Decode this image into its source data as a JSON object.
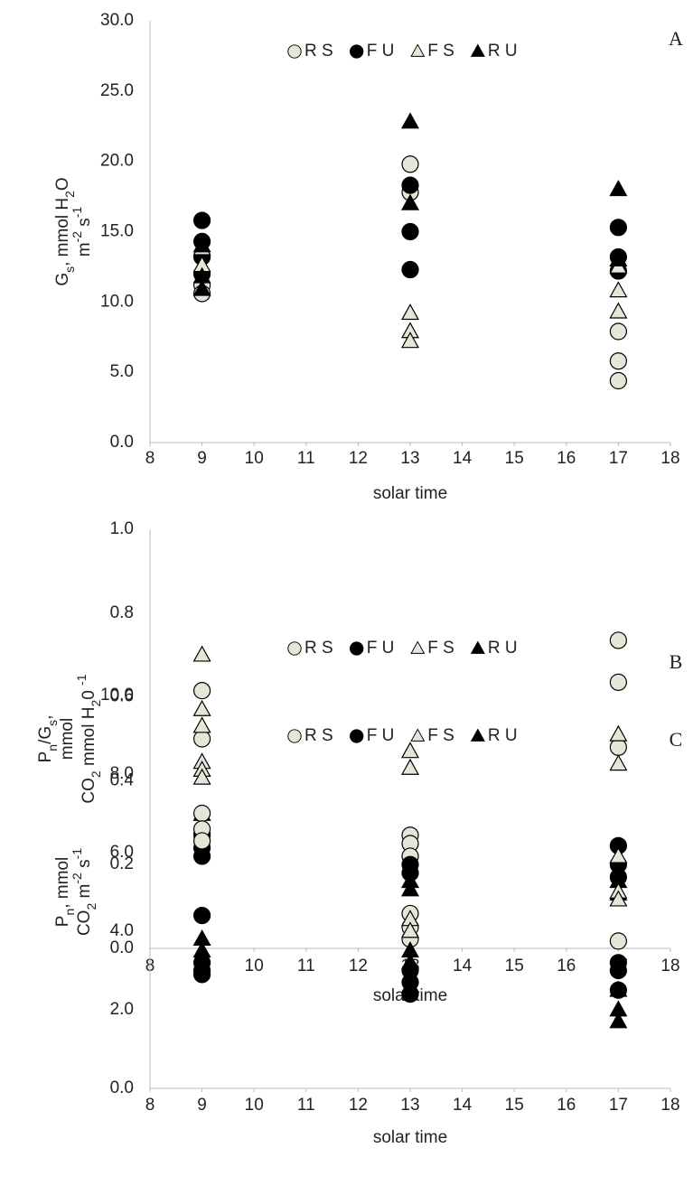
{
  "chart_data": [
    {
      "type": "scatter",
      "panel": "A",
      "xlabel": "solar time",
      "ylabel": [
        [
          {
            "text": "G",
            "shift": "base"
          },
          {
            "text": "s",
            "shift": "sub"
          },
          {
            "text": ", mmol H",
            "shift": "base"
          },
          {
            "text": "2",
            "shift": "sub"
          },
          {
            "text": "O",
            "shift": "base"
          }
        ],
        [
          {
            "text": "m",
            "shift": "base"
          },
          {
            "text": "-2",
            "shift": "super"
          },
          {
            "text": " s",
            "shift": "base"
          },
          {
            "text": "-1",
            "shift": "super"
          }
        ]
      ],
      "xlim": [
        8,
        18
      ],
      "xticks": [
        8,
        9,
        10,
        11,
        12,
        13,
        14,
        15,
        16,
        17,
        18
      ],
      "ylim": [
        0,
        30
      ],
      "yticks": [
        {
          "value": 0,
          "label": "0.0"
        },
        {
          "value": 5,
          "label": "5.0"
        },
        {
          "value": 10,
          "label": "10.0"
        },
        {
          "value": 15,
          "label": "15.0"
        },
        {
          "value": 20,
          "label": "20.0"
        },
        {
          "value": 25,
          "label": "25.0"
        },
        {
          "value": 30,
          "label": "30.0"
        }
      ],
      "series": [
        {
          "name": "R S",
          "color": "#e6e6d8",
          "marker": "circle",
          "x": [
            9,
            9,
            13,
            13,
            17,
            17,
            17
          ],
          "y": [
            11.2,
            10.6,
            19.8,
            17.8,
            7.9,
            5.8,
            4.4
          ]
        },
        {
          "name": "F U",
          "color": "#000000",
          "marker": "circle",
          "x": [
            9,
            9,
            9,
            9,
            13,
            13,
            13,
            17,
            17,
            17
          ],
          "y": [
            15.8,
            14.3,
            13.2,
            12.0,
            18.3,
            15.0,
            12.3,
            15.3,
            13.2,
            12.2
          ]
        },
        {
          "name": "F S",
          "color": "#e6e6d8",
          "marker": "triangle",
          "x": [
            9,
            9,
            13,
            13,
            13,
            17,
            17,
            17
          ],
          "y": [
            13.8,
            12.6,
            9.2,
            7.9,
            7.2,
            10.8,
            9.3,
            12.5
          ]
        },
        {
          "name": "R U",
          "color": "#000000",
          "marker": "triangle",
          "x": [
            9,
            9,
            9,
            13,
            13,
            17,
            17
          ],
          "y": [
            14.0,
            11.8,
            10.9,
            22.8,
            17.0,
            18.0,
            13.0
          ]
        }
      ]
    },
    {
      "type": "scatter",
      "panel": "B",
      "xlabel": "solar time",
      "ylabel": [
        [
          {
            "text": "P",
            "shift": "base"
          },
          {
            "text": "n",
            "shift": "sub"
          },
          {
            "text": "/G",
            "shift": "base"
          },
          {
            "text": "s",
            "shift": "sub"
          },
          {
            "text": ",",
            "shift": "base"
          }
        ],
        [
          {
            "text": "mmol",
            "shift": "base"
          }
        ],
        [
          {
            "text": "CO",
            "shift": "base"
          },
          {
            "text": "2",
            "shift": "sub"
          },
          {
            "text": " mmol H",
            "shift": "base"
          },
          {
            "text": "2",
            "shift": "sub"
          },
          {
            "text": "0 ",
            "shift": "base"
          },
          {
            "text": "-1",
            "shift": "super"
          }
        ]
      ],
      "xlim": [
        8,
        18
      ],
      "xticks": [
        8,
        9,
        10,
        11,
        12,
        13,
        14,
        15,
        16,
        17,
        18
      ],
      "ylim": [
        0,
        1
      ],
      "yticks": [
        {
          "value": 0,
          "label": "0.0"
        },
        {
          "value": 0.2,
          "label": "0.2"
        },
        {
          "value": 0.4,
          "label": "0.4"
        },
        {
          "value": 0.6,
          "label": "0.6"
        },
        {
          "value": 0.8,
          "label": "0.8"
        },
        {
          "value": 1,
          "label": "1.0"
        }
      ],
      "series": [
        {
          "name": "R S",
          "color": "#e6e6d8",
          "marker": "circle",
          "x": [
            9,
            9,
            13,
            13,
            13,
            17,
            17,
            17
          ],
          "y": [
            0.615,
            0.5,
            0.27,
            0.25,
            0.22,
            0.735,
            0.635,
            0.48
          ]
        },
        {
          "name": "F U",
          "color": "#000000",
          "marker": "circle",
          "x": [
            9,
            9,
            9,
            13,
            13,
            17,
            17,
            17
          ],
          "y": [
            0.27,
            0.24,
            0.22,
            0.2,
            0.18,
            0.245,
            0.2,
            0.17
          ]
        },
        {
          "name": "F S",
          "color": "#e6e6d8",
          "marker": "triangle",
          "x": [
            9,
            9,
            9,
            13,
            13,
            17,
            17
          ],
          "y": [
            0.7,
            0.57,
            0.53,
            0.47,
            0.43,
            0.51,
            0.44
          ]
        },
        {
          "name": "R U",
          "color": "#000000",
          "marker": "triangle",
          "x": [
            9,
            9,
            13,
            13,
            17,
            17
          ],
          "y": [
            0.32,
            0.29,
            0.16,
            0.14,
            0.16,
            0.13
          ]
        }
      ]
    },
    {
      "type": "scatter",
      "panel": "C",
      "xlabel": "solar time",
      "ylabel": [
        [
          {
            "text": "P",
            "shift": "base"
          },
          {
            "text": "n",
            "shift": "sub"
          },
          {
            "text": ", mmol",
            "shift": "base"
          }
        ],
        [
          {
            "text": "CO",
            "shift": "base"
          },
          {
            "text": "2",
            "shift": "sub"
          },
          {
            "text": " m",
            "shift": "base"
          },
          {
            "text": "-2",
            "shift": "super"
          },
          {
            "text": " s",
            "shift": "base"
          },
          {
            "text": "-1",
            "shift": "super"
          }
        ]
      ],
      "xlim": [
        8,
        18
      ],
      "xticks": [
        8,
        9,
        10,
        11,
        12,
        13,
        14,
        15,
        16,
        17,
        18
      ],
      "ylim": [
        0,
        10
      ],
      "yticks": [
        {
          "value": 0,
          "label": "0.0"
        },
        {
          "value": 2,
          "label": "2.0"
        },
        {
          "value": 4,
          "label": "4.0"
        },
        {
          "value": 6,
          "label": "6.0"
        },
        {
          "value": 8,
          "label": "8.0"
        },
        {
          "value": 10,
          "label": "10.0"
        }
      ],
      "series": [
        {
          "name": "R S",
          "color": "#e6e6d8",
          "marker": "circle",
          "x": [
            9,
            9,
            9,
            13,
            13,
            13,
            17
          ],
          "y": [
            7.0,
            6.6,
            6.3,
            4.45,
            4.1,
            3.8,
            3.75
          ]
        },
        {
          "name": "F U",
          "color": "#000000",
          "marker": "circle",
          "x": [
            9,
            9,
            9,
            9,
            13,
            13,
            13,
            17,
            17,
            17
          ],
          "y": [
            4.4,
            3.2,
            3.0,
            2.9,
            3.0,
            2.7,
            2.4,
            3.2,
            3.0,
            2.5
          ]
        },
        {
          "name": "F S",
          "color": "#e6e6d8",
          "marker": "triangle",
          "x": [
            9,
            9,
            9,
            13,
            13,
            17,
            17,
            17
          ],
          "y": [
            8.3,
            8.1,
            7.9,
            4.3,
            4.0,
            5.9,
            5.0,
            4.8
          ]
        },
        {
          "name": "R U",
          "color": "#000000",
          "marker": "triangle",
          "x": [
            9,
            9,
            13,
            13,
            13,
            17,
            17,
            17
          ],
          "y": [
            3.8,
            3.5,
            3.5,
            3.2,
            2.6,
            2.5,
            2.0,
            1.7
          ]
        }
      ]
    }
  ]
}
